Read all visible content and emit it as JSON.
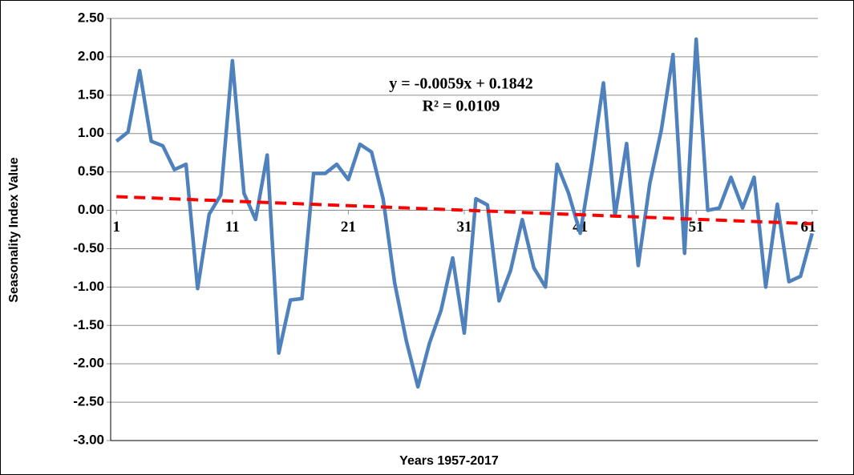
{
  "chart_data": {
    "type": "line",
    "x_title": "Years 1957-2017",
    "y_title": "Seasonality Index Value",
    "x": [
      1,
      2,
      3,
      4,
      5,
      6,
      7,
      8,
      9,
      10,
      11,
      12,
      13,
      14,
      15,
      16,
      17,
      18,
      19,
      20,
      21,
      22,
      23,
      24,
      25,
      26,
      27,
      28,
      29,
      30,
      31,
      32,
      33,
      34,
      35,
      36,
      37,
      38,
      39,
      40,
      41,
      42,
      43,
      44,
      45,
      46,
      47,
      48,
      49,
      50,
      51,
      52,
      53,
      54,
      55,
      56,
      57,
      58,
      59,
      60,
      61
    ],
    "series": [
      {
        "color": "#4f81bd",
        "values": [
          0.9,
          1.02,
          1.82,
          0.9,
          0.84,
          0.53,
          0.6,
          -1.02,
          -0.05,
          0.2,
          1.95,
          0.22,
          -0.12,
          0.72,
          -1.86,
          -1.17,
          -1.15,
          0.48,
          0.48,
          0.6,
          0.4,
          0.86,
          0.76,
          0.15,
          -0.95,
          -1.7,
          -2.3,
          -1.73,
          -1.3,
          -0.62,
          -1.6,
          0.15,
          0.07,
          -1.18,
          -0.78,
          -0.12,
          -0.75,
          -1.0,
          0.6,
          0.22,
          -0.3,
          0.62,
          1.66,
          -0.07,
          0.87,
          -0.72,
          0.35,
          1.05,
          2.03,
          -0.56,
          2.23,
          0.0,
          0.03,
          0.43,
          0.03,
          0.43,
          -1.0,
          0.08,
          -0.93,
          -0.86,
          -0.3
        ]
      }
    ],
    "trendline": {
      "slope": -0.0059,
      "intercept": 0.1842,
      "color": "#ff0000",
      "equation": "y = -0.0059x + 0.1842",
      "r_squared": "R² = 0.0109"
    },
    "xlim": [
      0.5,
      61.5
    ],
    "xticks": [
      1,
      11,
      21,
      31,
      41,
      51,
      61
    ],
    "ylim": [
      -3,
      2.5
    ],
    "yticks": [
      {
        "value": -3,
        "label": "-3.00"
      },
      {
        "value": -2.5,
        "label": "-2.50"
      },
      {
        "value": -2,
        "label": "-2.00"
      },
      {
        "value": -1.5,
        "label": "-1.50"
      },
      {
        "value": -1,
        "label": "-1.00"
      },
      {
        "value": -0.5,
        "label": "-0.50"
      },
      {
        "value": 0,
        "label": "0.00"
      },
      {
        "value": 0.5,
        "label": "0.50"
      },
      {
        "value": 1,
        "label": "1.00"
      },
      {
        "value": 1.5,
        "label": "1.50"
      },
      {
        "value": 2,
        "label": "2.00"
      },
      {
        "value": 2.5,
        "label": "2.50"
      }
    ],
    "grid": true
  }
}
